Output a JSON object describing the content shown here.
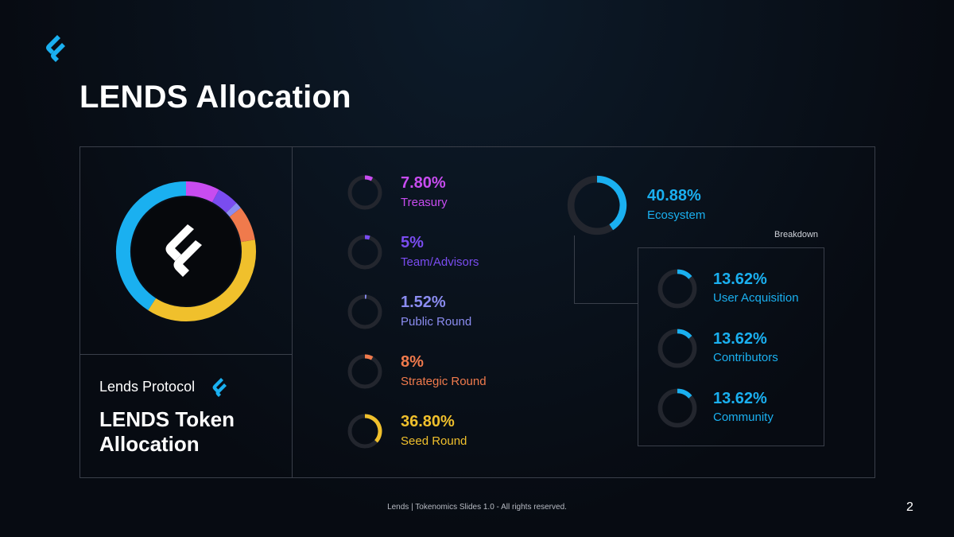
{
  "page": {
    "title": "LENDS Allocation",
    "footer": "Lends | Tokenomics Slides 1.0 - All rights reserved.",
    "page_number": "2"
  },
  "brand": {
    "name": "Lends Protocol",
    "subtitle_line1": "LENDS Token",
    "subtitle_line2": "Allocation"
  },
  "breakdown_label": "Breakdown",
  "colors": {
    "treasury": "#c84cf0",
    "team": "#7a4cf0",
    "public": "#8b8cf0",
    "strategic": "#f07a4c",
    "seed": "#f0c02c",
    "ecosystem": "#1ab0f0",
    "track": "#23262e"
  },
  "chart_data": {
    "type": "pie",
    "title": "LENDS Token Allocation",
    "series": [
      {
        "name": "Treasury",
        "value": 7.8,
        "label": "7.80%",
        "color_key": "treasury"
      },
      {
        "name": "Team/Advisors",
        "value": 5,
        "label": "5%",
        "color_key": "team"
      },
      {
        "name": "Public Round",
        "value": 1.52,
        "label": "1.52%",
        "color_key": "public"
      },
      {
        "name": "Strategic Round",
        "value": 8,
        "label": "8%",
        "color_key": "strategic"
      },
      {
        "name": "Seed Round",
        "value": 36.8,
        "label": "36.80%",
        "color_key": "seed"
      },
      {
        "name": "Ecosystem",
        "value": 40.88,
        "label": "40.88%",
        "color_key": "ecosystem"
      }
    ],
    "ecosystem_breakdown": [
      {
        "name": "User Acquisition",
        "value": 13.62,
        "label": "13.62%"
      },
      {
        "name": "Contributors",
        "value": 13.62,
        "label": "13.62%"
      },
      {
        "name": "Community",
        "value": 13.62,
        "label": "13.62%"
      }
    ]
  }
}
